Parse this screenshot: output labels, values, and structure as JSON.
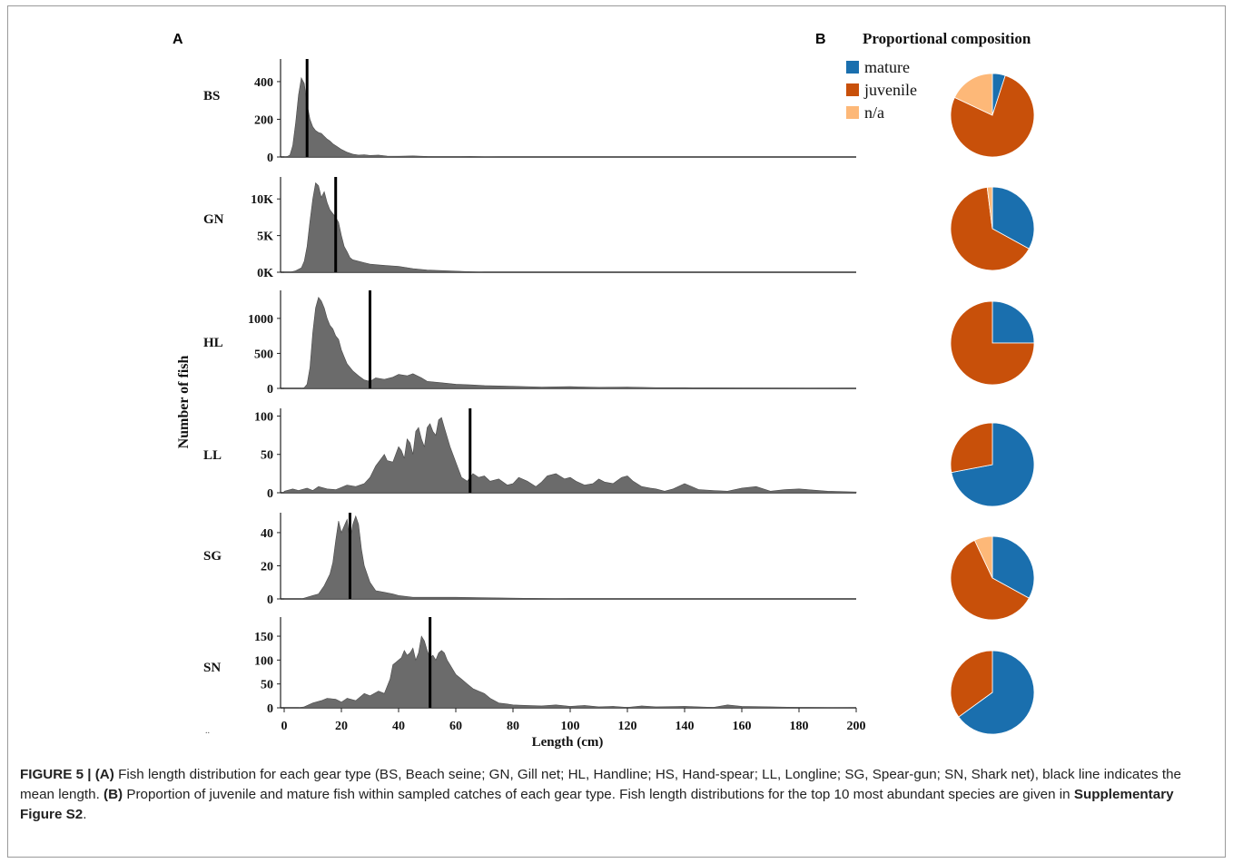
{
  "figure": {
    "panel_a_label": "A",
    "panel_b_label": "B",
    "y_axis_label": "Number of fish",
    "x_axis_label": "Length (cm)",
    "x_ticks": [
      "0",
      "20",
      "40",
      "60",
      "80",
      "100",
      "120",
      "140",
      "160",
      "180",
      "200"
    ],
    "pie_title": "Proportional composition",
    "legend": [
      {
        "label": "mature",
        "color": "#1a6fae"
      },
      {
        "label": "juvenile",
        "color": "#c8500a"
      },
      {
        "label": "n/a",
        "color": "#fdb878"
      }
    ],
    "stray_mark": ".."
  },
  "chart_data": [
    {
      "type": "area",
      "gear": "BS",
      "ylim": [
        0,
        520
      ],
      "y_ticks": [
        "400",
        "200",
        "0"
      ],
      "y_tick_values": [
        400,
        200,
        0
      ],
      "mean_length": 8,
      "x": [
        0,
        1,
        2,
        3,
        4,
        5,
        6,
        7,
        8,
        9,
        10,
        11,
        12,
        13,
        14,
        15,
        16,
        17,
        18,
        19,
        20,
        22,
        24,
        26,
        28,
        30,
        33,
        36,
        40,
        45,
        50,
        55,
        60,
        65,
        70,
        75,
        80,
        200
      ],
      "y": [
        0,
        2,
        10,
        60,
        180,
        330,
        420,
        390,
        280,
        200,
        160,
        140,
        130,
        125,
        110,
        95,
        85,
        70,
        60,
        50,
        40,
        25,
        15,
        10,
        12,
        8,
        10,
        5,
        4,
        6,
        3,
        2,
        2,
        3,
        1,
        0,
        0,
        0
      ]
    },
    {
      "type": "area",
      "gear": "GN",
      "ylim": [
        0,
        13000
      ],
      "y_ticks": [
        "10K",
        "5K",
        "0K"
      ],
      "y_tick_values": [
        10000,
        5000,
        0
      ],
      "mean_length": 18,
      "x": [
        0,
        2,
        4,
        6,
        7,
        8,
        9,
        10,
        11,
        12,
        13,
        14,
        15,
        16,
        17,
        18,
        19,
        20,
        21,
        22,
        23,
        24,
        26,
        28,
        30,
        33,
        36,
        40,
        45,
        50,
        60,
        70,
        200
      ],
      "y": [
        0,
        0,
        200,
        600,
        1500,
        3500,
        7000,
        10000,
        12200,
        11800,
        10200,
        11000,
        9500,
        8500,
        8000,
        7500,
        6800,
        5000,
        3500,
        2800,
        2000,
        1700,
        1500,
        1300,
        1100,
        1000,
        900,
        800,
        500,
        300,
        150,
        0,
        0
      ]
    },
    {
      "type": "area",
      "gear": "HL",
      "ylim": [
        0,
        1400
      ],
      "y_ticks": [
        "1000",
        "500",
        "0"
      ],
      "y_tick_values": [
        1000,
        500,
        0
      ],
      "mean_length": 30,
      "x": [
        0,
        4,
        6,
        7,
        8,
        9,
        10,
        11,
        12,
        13,
        14,
        15,
        16,
        17,
        18,
        19,
        20,
        21,
        22,
        24,
        26,
        28,
        30,
        32,
        35,
        38,
        40,
        43,
        45,
        48,
        50,
        55,
        60,
        65,
        70,
        80,
        90,
        100,
        110,
        120,
        130,
        140,
        150,
        160,
        200
      ],
      "y": [
        0,
        0,
        0,
        10,
        60,
        300,
        800,
        1150,
        1300,
        1250,
        1150,
        1000,
        900,
        850,
        750,
        700,
        550,
        450,
        350,
        250,
        180,
        120,
        100,
        150,
        130,
        160,
        200,
        180,
        210,
        150,
        100,
        80,
        60,
        50,
        40,
        30,
        20,
        25,
        15,
        20,
        10,
        10,
        8,
        5,
        0
      ]
    },
    {
      "type": "area",
      "gear": "LL",
      "ylim": [
        0,
        110
      ],
      "y_ticks": [
        "100",
        "50",
        "0"
      ],
      "y_tick_values": [
        100,
        50,
        0
      ],
      "mean_length": 65,
      "x": [
        0,
        3,
        5,
        8,
        10,
        12,
        15,
        18,
        20,
        22,
        25,
        28,
        30,
        32,
        34,
        35,
        36,
        38,
        40,
        41,
        42,
        43,
        44,
        45,
        46,
        47,
        48,
        49,
        50,
        51,
        52,
        53,
        54,
        55,
        56,
        58,
        60,
        62,
        64,
        66,
        68,
        70,
        72,
        75,
        78,
        80,
        82,
        85,
        88,
        90,
        92,
        95,
        98,
        100,
        102,
        105,
        108,
        110,
        112,
        115,
        118,
        120,
        122,
        125,
        128,
        130,
        133,
        136,
        140,
        145,
        150,
        155,
        160,
        165,
        170,
        175,
        180,
        190,
        200
      ],
      "y": [
        2,
        5,
        3,
        6,
        3,
        8,
        5,
        4,
        7,
        10,
        8,
        12,
        20,
        35,
        45,
        50,
        42,
        40,
        60,
        55,
        45,
        70,
        65,
        50,
        80,
        85,
        70,
        60,
        85,
        90,
        80,
        75,
        95,
        98,
        85,
        60,
        40,
        20,
        15,
        25,
        20,
        22,
        15,
        18,
        10,
        12,
        20,
        15,
        8,
        14,
        22,
        25,
        18,
        20,
        15,
        10,
        12,
        18,
        14,
        12,
        20,
        22,
        15,
        8,
        6,
        5,
        2,
        5,
        12,
        4,
        3,
        2,
        6,
        8,
        2,
        4,
        5,
        2,
        1
      ]
    },
    {
      "type": "area",
      "gear": "SG",
      "ylim": [
        0,
        52
      ],
      "y_ticks": [
        "40",
        "20",
        "0"
      ],
      "y_tick_values": [
        40,
        20,
        0
      ],
      "mean_length": 23,
      "x": [
        0,
        2,
        4,
        6,
        8,
        10,
        12,
        14,
        16,
        17,
        18,
        19,
        20,
        21,
        22,
        23,
        24,
        25,
        26,
        27,
        28,
        30,
        32,
        35,
        38,
        40,
        45,
        50,
        60,
        100,
        150,
        200
      ],
      "y": [
        0,
        0,
        0,
        0,
        1,
        2,
        3,
        8,
        15,
        22,
        35,
        47,
        40,
        44,
        48,
        35,
        45,
        50,
        45,
        30,
        20,
        10,
        5,
        4,
        3,
        2,
        1,
        1,
        1,
        0,
        0,
        0
      ]
    },
    {
      "type": "area",
      "gear": "SN",
      "ylim": [
        0,
        190
      ],
      "y_ticks": [
        "150",
        "100",
        "50",
        "0"
      ],
      "y_tick_values": [
        150,
        100,
        50,
        0
      ],
      "mean_length": 51,
      "x": [
        0,
        5,
        7,
        10,
        13,
        15,
        18,
        20,
        22,
        25,
        28,
        30,
        33,
        35,
        37,
        38,
        39,
        40,
        41,
        42,
        43,
        44,
        45,
        46,
        47,
        48,
        49,
        50,
        51,
        52,
        53,
        54,
        55,
        56,
        57,
        58,
        60,
        62,
        64,
        66,
        68,
        70,
        72,
        75,
        78,
        80,
        85,
        90,
        95,
        100,
        105,
        110,
        115,
        120,
        125,
        130,
        140,
        150,
        155,
        160,
        170,
        180,
        200
      ],
      "y": [
        0,
        0,
        2,
        10,
        15,
        20,
        18,
        12,
        20,
        15,
        30,
        25,
        35,
        30,
        60,
        90,
        95,
        100,
        105,
        120,
        110,
        115,
        125,
        100,
        115,
        150,
        140,
        120,
        105,
        110,
        100,
        115,
        120,
        115,
        100,
        90,
        70,
        60,
        50,
        40,
        35,
        30,
        20,
        10,
        8,
        6,
        5,
        4,
        6,
        3,
        5,
        2,
        3,
        1,
        4,
        2,
        3,
        1,
        6,
        3,
        2,
        1,
        0
      ]
    },
    {
      "type": "pie",
      "title": "Proportional composition",
      "categories": [
        "mature",
        "juvenile",
        "n/a"
      ],
      "series": [
        {
          "gear": "BS",
          "values": [
            5,
            77,
            18
          ]
        },
        {
          "gear": "GN",
          "values": [
            33,
            65,
            2
          ]
        },
        {
          "gear": "HL",
          "values": [
            25,
            75,
            0
          ]
        },
        {
          "gear": "LL",
          "values": [
            72,
            28,
            0
          ]
        },
        {
          "gear": "SG",
          "values": [
            33,
            60,
            7
          ]
        },
        {
          "gear": "SN",
          "values": [
            65,
            35,
            0
          ]
        }
      ]
    }
  ],
  "caption": {
    "label": "FIGURE 5 |",
    "part_a": "(A)",
    "text_a": " Fish length distribution for each gear type (BS, Beach seine; GN, Gill net; HL, Handline; HS, Hand-spear; LL, Longline; SG, Spear-gun; SN, Shark net), black line indicates the mean length. ",
    "part_b": "(B)",
    "text_b": " Proportion of juvenile and mature fish within sampled catches of each gear type. Fish length distributions for the top 10 most abundant species are given in ",
    "ref": "Supplementary Figure S2",
    "end": "."
  }
}
